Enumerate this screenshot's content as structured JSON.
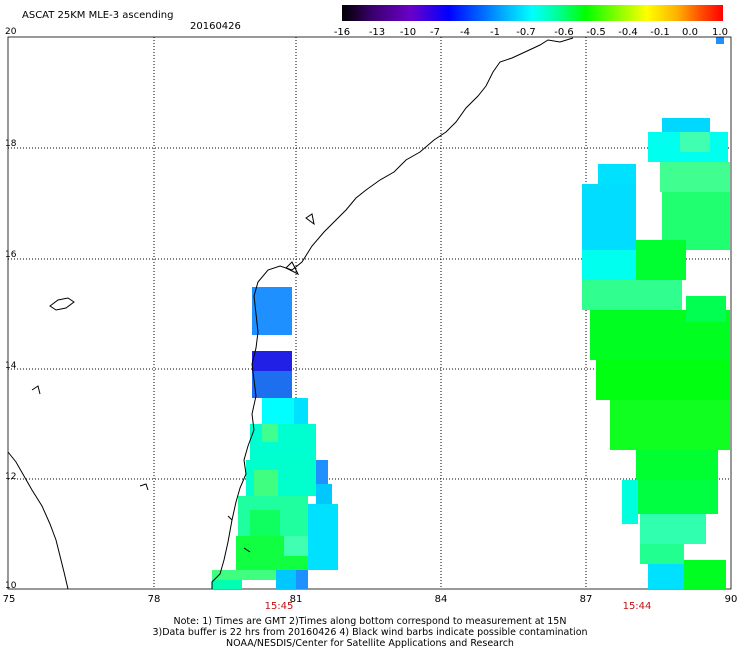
{
  "header": {
    "title": "ASCAT 25KM MLE-3 ascending",
    "date": "20160426"
  },
  "colorbar": {
    "ticks": [
      "-16",
      "-13",
      "-10",
      "-7",
      "-4",
      "-1",
      "-0.7",
      "-0.6",
      "-0.5",
      "-0.4",
      "-0.1",
      "0.0",
      "1.0"
    ],
    "colors": [
      "#000000",
      "#6a00c8",
      "#0000ff",
      "#00c0ff",
      "#00ffff",
      "#00ff00",
      "#ffff00",
      "#ff0000"
    ]
  },
  "axes": {
    "lat_labels": [
      "20",
      "18",
      "16",
      "14",
      "12",
      "10"
    ],
    "lon_labels": [
      "75",
      "78",
      "81",
      "84",
      "87",
      "90"
    ]
  },
  "times": {
    "left": "15:45",
    "right": "15:44"
  },
  "notes": {
    "line1": "Note: 1) Times are GMT 2)Times along bottom correspond to measurement at 15N",
    "line2": "3)Data buffer is 22 hrs from 20160426 4) Black wind barbs indicate possible contamination",
    "line3": "NOAA/NESDIS/Center for Satellite Applications and Research"
  }
}
